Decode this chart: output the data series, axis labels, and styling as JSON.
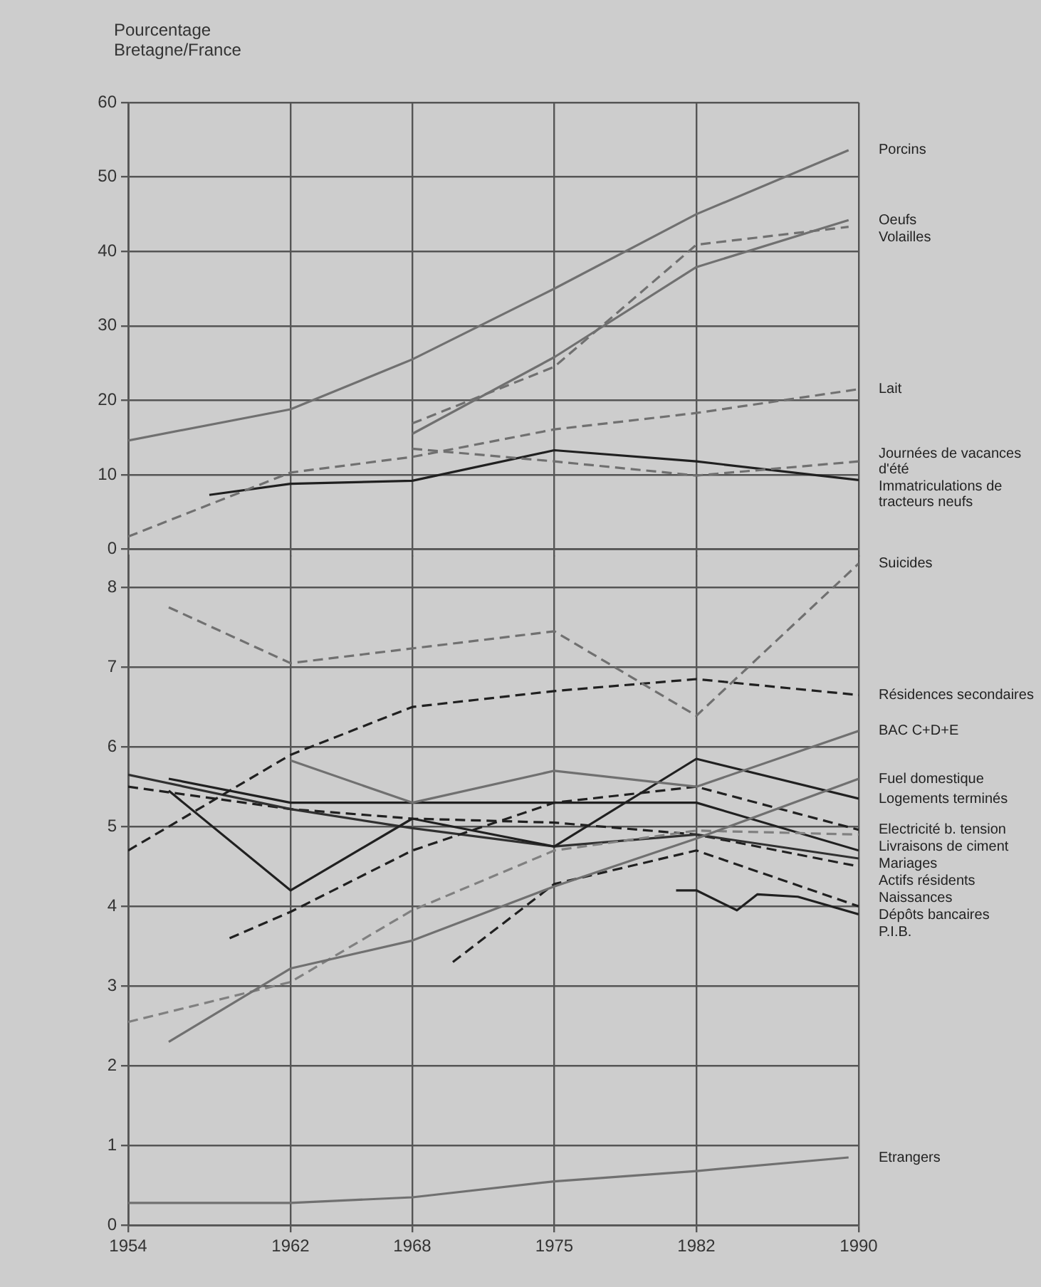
{
  "chart_data": [
    {
      "type": "line",
      "ylabel": "Pourcentage Bretagne/France",
      "xlim": [
        1954,
        1990
      ],
      "xticks": [
        1954,
        1962,
        1968,
        1975,
        1982,
        1990
      ],
      "ylim": [
        0,
        60
      ],
      "yticks": [
        0,
        10,
        20,
        30,
        40,
        50,
        60
      ],
      "grid": true,
      "tick_labels": "y",
      "series": [
        {
          "name": "Porcins",
          "color": "#707070",
          "line_style": "solid",
          "x": [
            1954,
            1962,
            1968,
            1975,
            1982,
            1989.5
          ],
          "values": [
            14.6,
            18.8,
            25.5,
            35,
            45,
            53.6
          ]
        },
        {
          "name": "Oeufs",
          "color": "#707070",
          "line_style": "solid",
          "x": [
            1968,
            1975,
            1982,
            1989.5
          ],
          "values": [
            15.5,
            25.8,
            37.9,
            44.2
          ]
        },
        {
          "name": "Volailles",
          "color": "#707070",
          "line_style": "dashed",
          "x": [
            1968,
            1975,
            1982,
            1989.5
          ],
          "values": [
            16.9,
            24.5,
            40.9,
            43.3
          ]
        },
        {
          "name": "Lait",
          "color": "#707070",
          "line_style": "dashed",
          "x": [
            1954,
            1962,
            1968,
            1975,
            1982,
            1990
          ],
          "values": [
            1.7,
            10.3,
            12.4,
            16.1,
            18.3,
            21.5
          ]
        },
        {
          "name": "Journées de vacances d'été",
          "color": "#707070",
          "line_style": "dashed",
          "x": [
            1968,
            1975,
            1982,
            1990
          ],
          "values": [
            13.5,
            11.8,
            9.9,
            11.8
          ]
        },
        {
          "name": "Immatriculations de tracteurs neufs",
          "color": "#202020",
          "line_style": "solid",
          "x": [
            1958,
            1962,
            1968,
            1975,
            1982,
            1990
          ],
          "values": [
            7.3,
            8.8,
            9.2,
            13.3,
            11.8,
            9.3
          ]
        }
      ]
    },
    {
      "type": "line",
      "xlim": [
        1954,
        1990
      ],
      "xticks": [
        1954,
        1962,
        1968,
        1975,
        1982,
        1990
      ],
      "ylim": [
        0,
        8.4
      ],
      "yticks": [
        0,
        1,
        2,
        3,
        4,
        5,
        6,
        7,
        8
      ],
      "grid": true,
      "series": [
        {
          "name": "Suicides",
          "color": "#707070",
          "line_style": "dashed",
          "x": [
            1956,
            1962,
            1975,
            1982,
            1990
          ],
          "values": [
            7.75,
            7.05,
            7.45,
            6.39,
            8.3
          ]
        },
        {
          "name": "Résidences secondaires",
          "color": "#202020",
          "line_style": "dashed",
          "x": [
            1954,
            1962,
            1968,
            1975,
            1982,
            1990
          ],
          "values": [
            4.7,
            5.9,
            6.5,
            6.7,
            6.85,
            6.65
          ]
        },
        {
          "name": "BAC C+D+E",
          "color": "#707070",
          "line_style": "solid",
          "x": [
            1962,
            1968,
            1975,
            1982,
            1990
          ],
          "values": [
            5.83,
            5.3,
            5.7,
            5.5,
            6.2
          ]
        },
        {
          "name": "Fuel domestique",
          "color": "#707070",
          "line_style": "solid",
          "x": [
            1956,
            1962,
            1968,
            1975,
            1982,
            1990
          ],
          "values": [
            2.3,
            3.22,
            3.57,
            4.25,
            4.85,
            5.6
          ]
        },
        {
          "name": "Logements terminés",
          "color": "#202020",
          "line_style": "solid",
          "x": [
            1956,
            1962,
            1968,
            1975,
            1982,
            1990
          ],
          "values": [
            5.45,
            4.2,
            5.1,
            4.75,
            5.85,
            5.35
          ]
        },
        {
          "name": "Electricité b. tension",
          "color": "#202020",
          "line_style": "dashed",
          "x": [
            1959,
            1962,
            1968,
            1975,
            1982,
            1990
          ],
          "values": [
            3.6,
            3.93,
            4.7,
            5.3,
            5.5,
            4.96
          ]
        },
        {
          "name": "Livraisons de ciment",
          "color": "#808080",
          "line_style": "dashed",
          "x": [
            1954,
            1962,
            1968,
            1975,
            1982,
            1990
          ],
          "values": [
            2.55,
            3.05,
            3.95,
            4.7,
            4.95,
            4.9
          ]
        },
        {
          "name": "Mariages",
          "color": "#202020",
          "line_style": "solid",
          "x": [
            1956,
            1962,
            1968,
            1975,
            1982,
            1990
          ],
          "values": [
            5.6,
            5.3,
            5.3,
            5.3,
            5.3,
            4.7
          ]
        },
        {
          "name": "Actifs résidents",
          "color": "#303030",
          "line_style": "solid",
          "x": [
            1954,
            1962,
            1968,
            1975,
            1982,
            1990
          ],
          "values": [
            5.65,
            5.22,
            4.98,
            4.75,
            4.9,
            4.6
          ]
        },
        {
          "name": "Naissances",
          "color": "#202020",
          "line_style": "dashed",
          "x": [
            1954,
            1962,
            1968,
            1975,
            1982,
            1990
          ],
          "values": [
            5.5,
            5.22,
            5.1,
            5.05,
            4.9,
            4.5
          ]
        },
        {
          "name": "Dépôts bancaires",
          "color": "#202020",
          "line_style": "dashed",
          "x": [
            1970,
            1975,
            1982,
            1990
          ],
          "values": [
            3.3,
            4.28,
            4.7,
            4.0
          ]
        },
        {
          "name": "P.I.B.",
          "color": "#202020",
          "line_style": "solid",
          "x": [
            1981,
            1982,
            1984,
            1985,
            1987,
            1990
          ],
          "values": [
            4.2,
            4.2,
            3.95,
            4.15,
            4.12,
            3.9
          ]
        },
        {
          "name": "Etrangers",
          "color": "#707070",
          "line_style": "solid",
          "x": [
            1954,
            1962,
            1968,
            1975,
            1982,
            1989.5
          ],
          "values": [
            0.28,
            0.28,
            0.35,
            0.55,
            0.68,
            0.85
          ]
        }
      ]
    }
  ]
}
